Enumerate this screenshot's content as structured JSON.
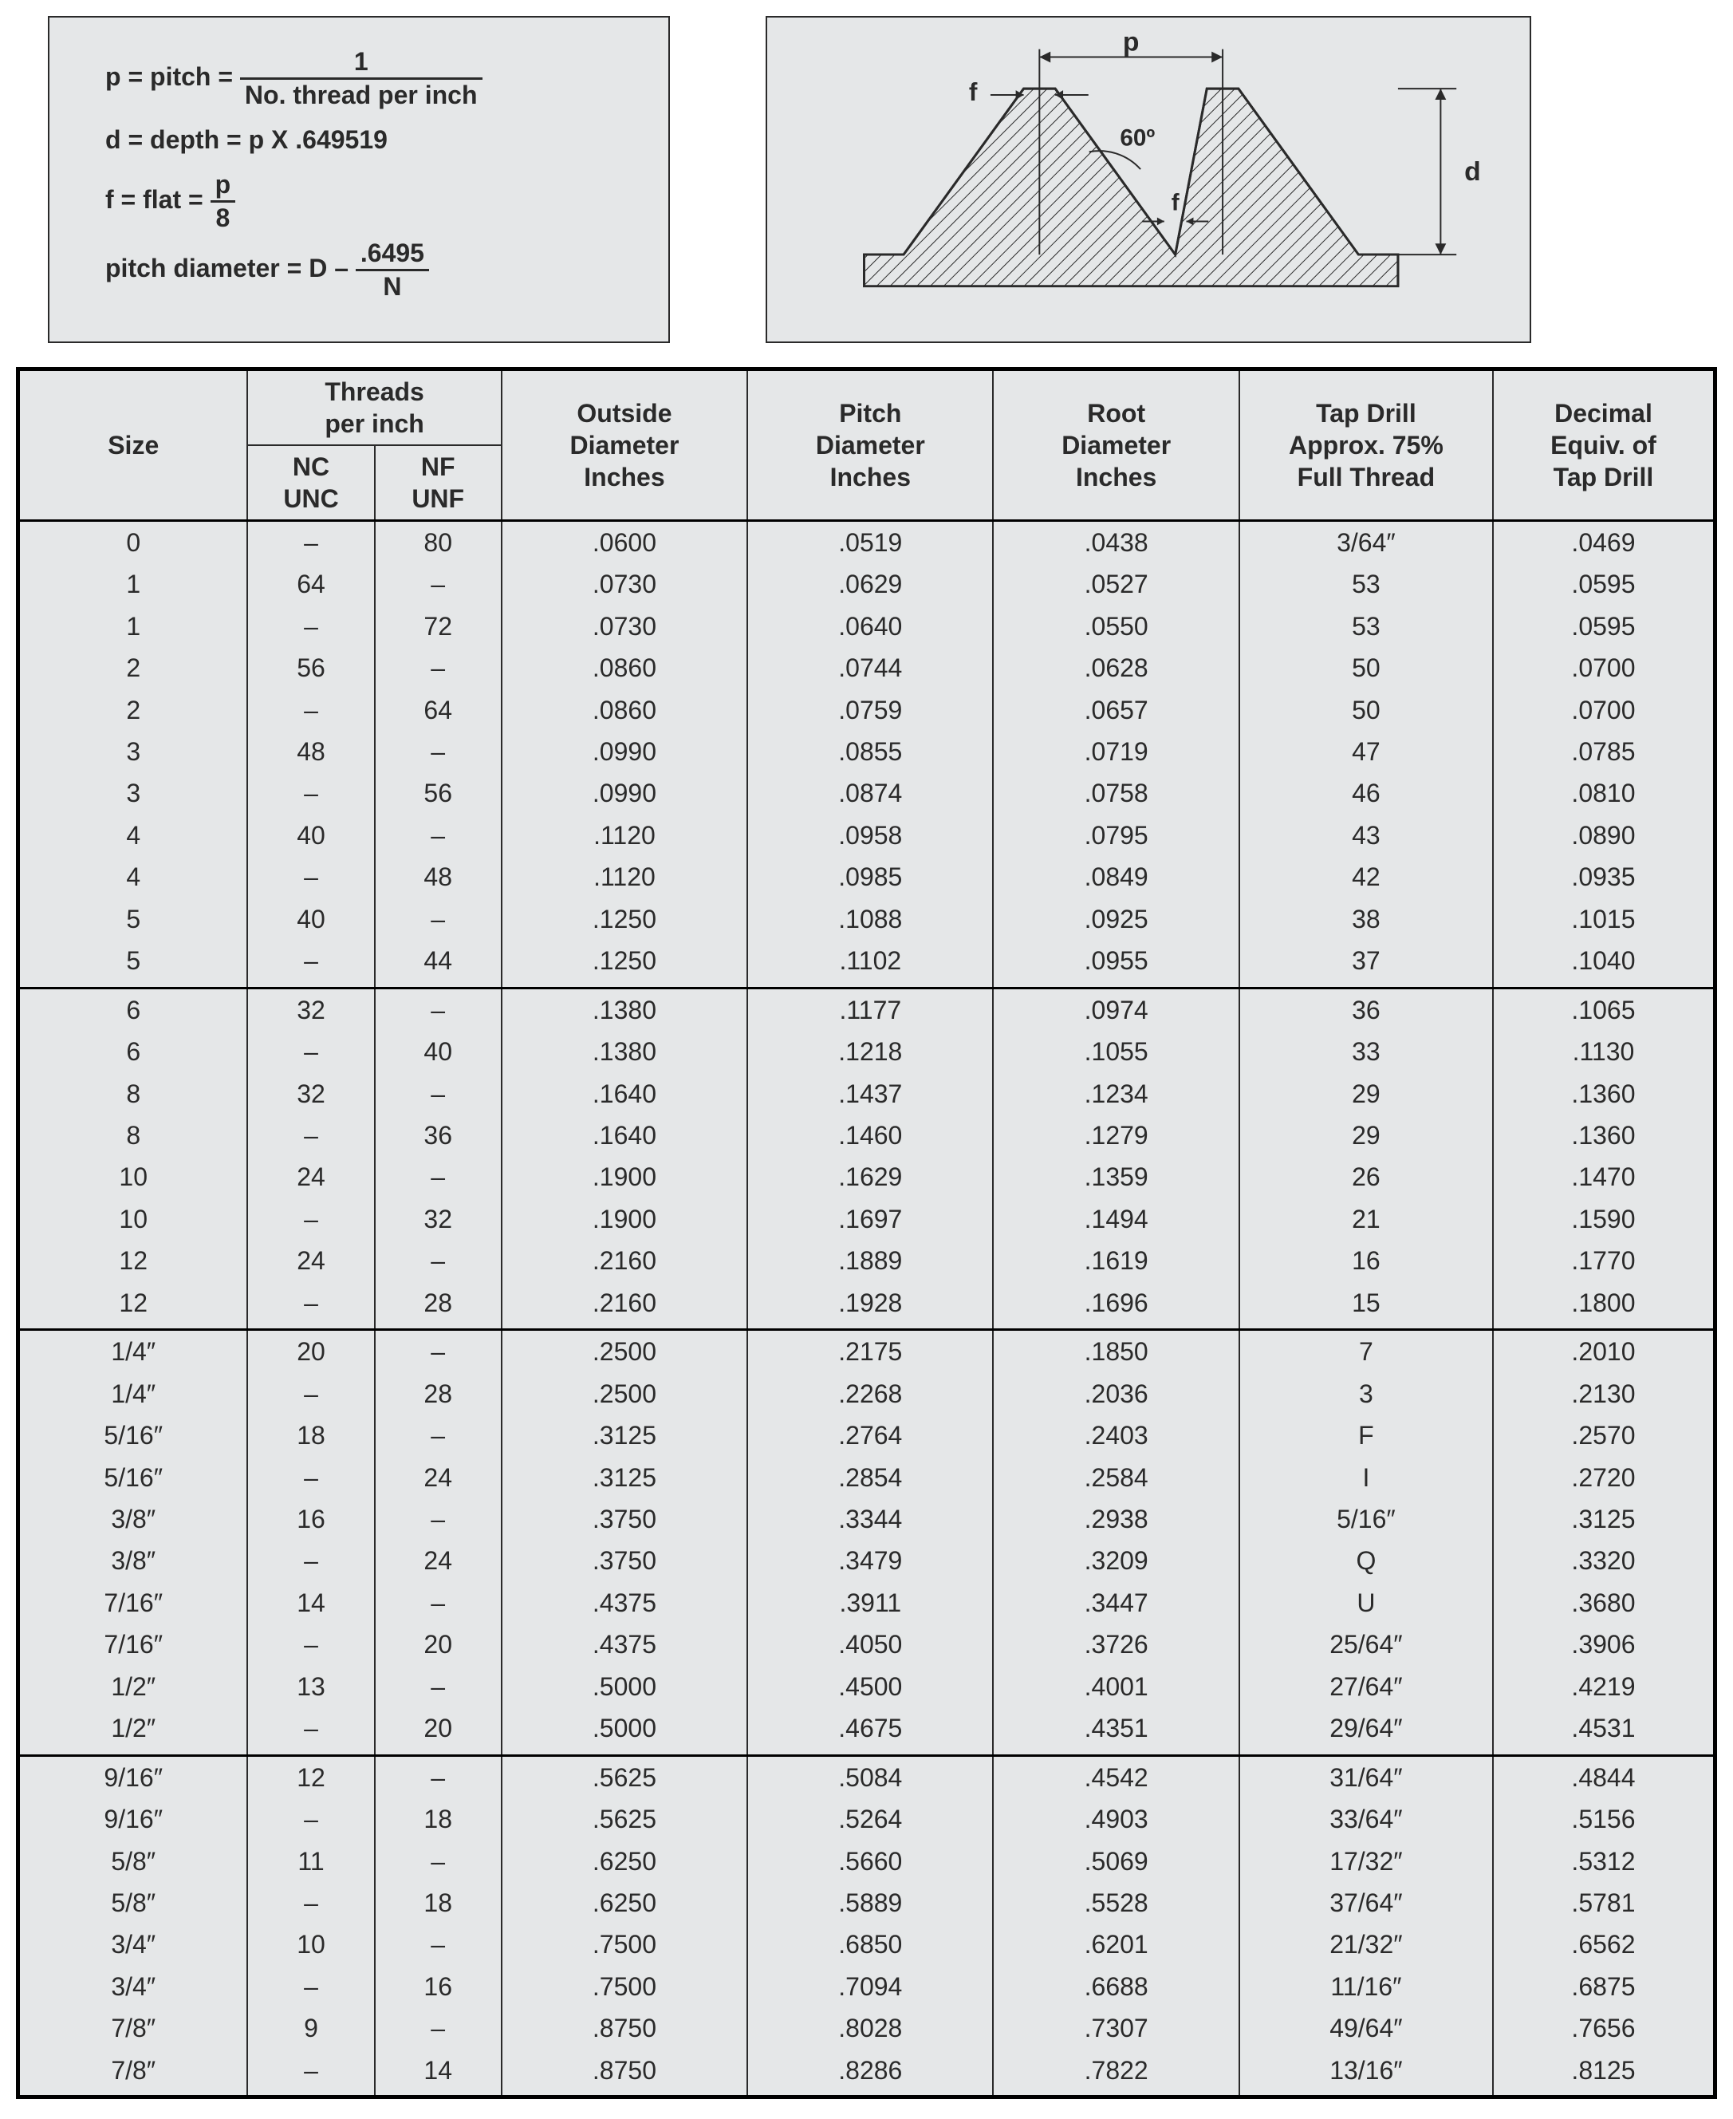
{
  "formulas": {
    "pitch_label": "p = pitch =",
    "pitch_num": "1",
    "pitch_den": "No. thread per inch",
    "depth": "d = depth = p  X  .649519",
    "flat_label": "f = flat =",
    "flat_num": "p",
    "flat_den": "8",
    "pd_label": "pitch diameter = D –",
    "pd_num": ".6495",
    "pd_den": "N"
  },
  "diagram": {
    "p_label": "p",
    "f_label": "f",
    "d_label": "d",
    "angle_label": "60º",
    "bg": "#e5e7e8",
    "stroke": "#2a2a2a",
    "hatch": "#2a2a2a"
  },
  "table": {
    "headers": {
      "size": "Size",
      "tpi": "Threads\nper inch",
      "nc": "NC\nUNC",
      "nf": "NF\nUNF",
      "od": "Outside\nDiameter\nInches",
      "pd": "Pitch\nDiameter\nInches",
      "rd": "Root\nDiameter\nInches",
      "tapdrill": "Tap Drill\nApprox. 75%\nFull Thread",
      "decimal": "Decimal\nEquiv. of\nTap Drill"
    },
    "sections": [
      [
        [
          "0",
          "–",
          "80",
          ".0600",
          ".0519",
          ".0438",
          "3/64″",
          ".0469"
        ],
        [
          "1",
          "64",
          "–",
          ".0730",
          ".0629",
          ".0527",
          "53",
          ".0595"
        ],
        [
          "1",
          "–",
          "72",
          ".0730",
          ".0640",
          ".0550",
          "53",
          ".0595"
        ],
        [
          "2",
          "56",
          "–",
          ".0860",
          ".0744",
          ".0628",
          "50",
          ".0700"
        ],
        [
          "2",
          "–",
          "64",
          ".0860",
          ".0759",
          ".0657",
          "50",
          ".0700"
        ],
        [
          "3",
          "48",
          "–",
          ".0990",
          ".0855",
          ".0719",
          "47",
          ".0785"
        ],
        [
          "3",
          "–",
          "56",
          ".0990",
          ".0874",
          ".0758",
          "46",
          ".0810"
        ],
        [
          "4",
          "40",
          "–",
          ".1120",
          ".0958",
          ".0795",
          "43",
          ".0890"
        ],
        [
          "4",
          "–",
          "48",
          ".1120",
          ".0985",
          ".0849",
          "42",
          ".0935"
        ],
        [
          "5",
          "40",
          "–",
          ".1250",
          ".1088",
          ".0925",
          "38",
          ".1015"
        ],
        [
          "5",
          "–",
          "44",
          ".1250",
          ".1102",
          ".0955",
          "37",
          ".1040"
        ]
      ],
      [
        [
          "6",
          "32",
          "–",
          ".1380",
          ".1177",
          ".0974",
          "36",
          ".1065"
        ],
        [
          "6",
          "–",
          "40",
          ".1380",
          ".1218",
          ".1055",
          "33",
          ".1130"
        ],
        [
          "8",
          "32",
          "–",
          ".1640",
          ".1437",
          ".1234",
          "29",
          ".1360"
        ],
        [
          "8",
          "–",
          "36",
          ".1640",
          ".1460",
          ".1279",
          "29",
          ".1360"
        ],
        [
          "10",
          "24",
          "–",
          ".1900",
          ".1629",
          ".1359",
          "26",
          ".1470"
        ],
        [
          "10",
          "–",
          "32",
          ".1900",
          ".1697",
          ".1494",
          "21",
          ".1590"
        ],
        [
          "12",
          "24",
          "–",
          ".2160",
          ".1889",
          ".1619",
          "16",
          ".1770"
        ],
        [
          "12",
          "–",
          "28",
          ".2160",
          ".1928",
          ".1696",
          "15",
          ".1800"
        ]
      ],
      [
        [
          "1/4″",
          "20",
          "–",
          ".2500",
          ".2175",
          ".1850",
          "7",
          ".2010"
        ],
        [
          "1/4″",
          "–",
          "28",
          ".2500",
          ".2268",
          ".2036",
          "3",
          ".2130"
        ],
        [
          "5/16″",
          "18",
          "–",
          ".3125",
          ".2764",
          ".2403",
          "F",
          ".2570"
        ],
        [
          "5/16″",
          "–",
          "24",
          ".3125",
          ".2854",
          ".2584",
          "I",
          ".2720"
        ],
        [
          "3/8″",
          "16",
          "–",
          ".3750",
          ".3344",
          ".2938",
          "5/16″",
          ".3125"
        ],
        [
          "3/8″",
          "–",
          "24",
          ".3750",
          ".3479",
          ".3209",
          "Q",
          ".3320"
        ],
        [
          "7/16″",
          "14",
          "–",
          ".4375",
          ".3911",
          ".3447",
          "U",
          ".3680"
        ],
        [
          "7/16″",
          "–",
          "20",
          ".4375",
          ".4050",
          ".3726",
          "25/64″",
          ".3906"
        ],
        [
          "1/2″",
          "13",
          "–",
          ".5000",
          ".4500",
          ".4001",
          "27/64″",
          ".4219"
        ],
        [
          "1/2″",
          "–",
          "20",
          ".5000",
          ".4675",
          ".4351",
          "29/64″",
          ".4531"
        ]
      ],
      [
        [
          "9/16″",
          "12",
          "–",
          ".5625",
          ".5084",
          ".4542",
          "31/64″",
          ".4844"
        ],
        [
          "9/16″",
          "–",
          "18",
          ".5625",
          ".5264",
          ".4903",
          "33/64″",
          ".5156"
        ],
        [
          "5/8″",
          "11",
          "–",
          ".6250",
          ".5660",
          ".5069",
          "17/32″",
          ".5312"
        ],
        [
          "5/8″",
          "–",
          "18",
          ".6250",
          ".5889",
          ".5528",
          "37/64″",
          ".5781"
        ],
        [
          "3/4″",
          "10",
          "–",
          ".7500",
          ".6850",
          ".6201",
          "21/32″",
          ".6562"
        ],
        [
          "3/4″",
          "–",
          "16",
          ".7500",
          ".7094",
          ".6688",
          "11/16″",
          ".6875"
        ],
        [
          "7/8″",
          "9",
          "–",
          ".8750",
          ".8028",
          ".7307",
          "49/64″",
          ".7656"
        ],
        [
          "7/8″",
          "–",
          "14",
          ".8750",
          ".8286",
          ".7822",
          "13/16″",
          ".8125"
        ]
      ]
    ],
    "colors": {
      "bg": "#e5e7e8",
      "border": "#2a2a2a",
      "text": "#2a2a2a"
    }
  }
}
